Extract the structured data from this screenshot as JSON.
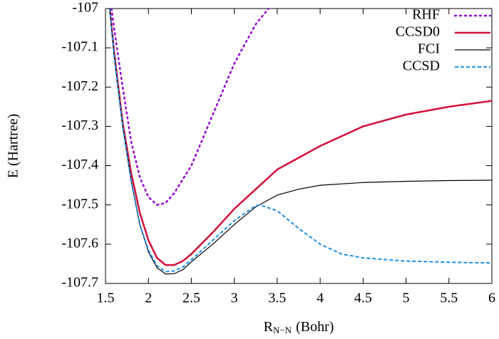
{
  "chart_data": {
    "type": "line",
    "xlabel": [
      "R",
      "N−N",
      "(Bohr)"
    ],
    "ylabel": "E (Hartree)",
    "xlim": [
      1.5,
      6
    ],
    "xticks": [
      1.5,
      2,
      2.5,
      3,
      3.5,
      4,
      4.5,
      5,
      5.5,
      6
    ],
    "ylim": [
      -107.7,
      -107
    ],
    "yticks": [
      -107.7,
      -107.6,
      -107.5,
      -107.4,
      -107.3,
      -107.2,
      -107.1,
      -107
    ],
    "legend": "upper right",
    "series": [
      {
        "name": "RHF",
        "color": "#9400d3",
        "dash": "dotted",
        "x": [
          1.57,
          1.6,
          1.7,
          1.8,
          1.9,
          2.0,
          2.1,
          2.2,
          2.3,
          2.5,
          2.75,
          3.0,
          3.25,
          3.4
        ],
        "values": [
          -107.0,
          -107.05,
          -107.2,
          -107.34,
          -107.43,
          -107.48,
          -107.5,
          -107.495,
          -107.47,
          -107.4,
          -107.27,
          -107.14,
          -107.04,
          -107.0
        ]
      },
      {
        "name": "CCSD0",
        "color": "#d0103a",
        "dash": "solid",
        "x": [
          1.55,
          1.6,
          1.7,
          1.8,
          1.9,
          2.0,
          2.1,
          2.2,
          2.3,
          2.4,
          2.5,
          2.75,
          3.0,
          3.25,
          3.5,
          4.0,
          4.5,
          5.0,
          5.5,
          6.0
        ],
        "values": [
          -107.0,
          -107.11,
          -107.29,
          -107.42,
          -107.52,
          -107.59,
          -107.635,
          -107.653,
          -107.653,
          -107.643,
          -107.625,
          -107.57,
          -107.51,
          -107.46,
          -107.41,
          -107.35,
          -107.3,
          -107.27,
          -107.25,
          -107.235
        ]
      },
      {
        "name": "FCI",
        "color": "#000000",
        "dash": "thin",
        "x": [
          1.55,
          1.6,
          1.7,
          1.8,
          1.9,
          2.0,
          2.1,
          2.2,
          2.3,
          2.4,
          2.5,
          2.75,
          3.0,
          3.25,
          3.5,
          3.75,
          4.0,
          4.5,
          5.0,
          5.5,
          6.0
        ],
        "values": [
          -107.0,
          -107.12,
          -107.3,
          -107.44,
          -107.55,
          -107.62,
          -107.66,
          -107.676,
          -107.675,
          -107.665,
          -107.645,
          -107.6,
          -107.55,
          -107.505,
          -107.475,
          -107.46,
          -107.45,
          -107.443,
          -107.44,
          -107.438,
          -107.437
        ]
      },
      {
        "name": "CCSD",
        "color": "#1a8fe3",
        "dash": "dashed",
        "x": [
          1.55,
          1.6,
          1.7,
          1.8,
          1.9,
          2.0,
          2.1,
          2.2,
          2.3,
          2.4,
          2.5,
          2.75,
          3.0,
          3.25,
          3.3,
          3.5,
          3.75,
          4.0,
          4.25,
          4.5,
          5.0,
          5.5,
          6.0
        ],
        "values": [
          -107.0,
          -107.12,
          -107.3,
          -107.44,
          -107.55,
          -107.615,
          -107.655,
          -107.67,
          -107.668,
          -107.658,
          -107.64,
          -107.59,
          -107.54,
          -107.502,
          -107.5,
          -107.515,
          -107.56,
          -107.6,
          -107.625,
          -107.635,
          -107.643,
          -107.646,
          -107.648
        ]
      }
    ]
  }
}
